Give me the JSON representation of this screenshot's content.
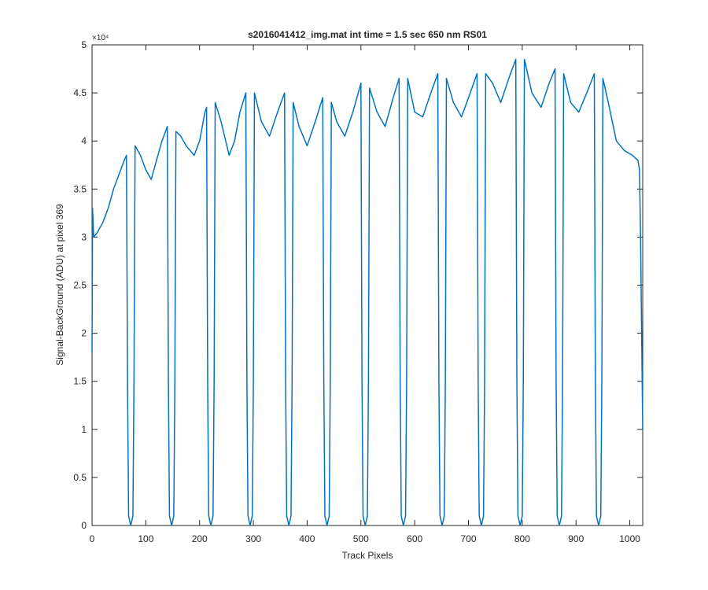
{
  "chart_data": {
    "type": "line",
    "title": "s2016041412_img.mat int time = 1.5 sec  650 nm RS01",
    "x_label": "Track Pixels",
    "y_label": "Signal-BackGround (ADU) at pixel 369",
    "exponent_label": "×10⁴",
    "xlim": [
      0,
      1024
    ],
    "xticks": [
      0,
      100,
      200,
      300,
      400,
      500,
      600,
      700,
      800,
      900,
      1000
    ],
    "ylim": [
      0,
      50000
    ],
    "yticks": [
      0,
      {
        "value": 5000,
        "label": "0.5"
      },
      {
        "value": 10000,
        "label": "1"
      },
      {
        "value": 15000,
        "label": "1.5"
      },
      {
        "value": 20000,
        "label": "2"
      },
      {
        "value": 25000,
        "label": "2.5"
      },
      {
        "value": 30000,
        "label": "3"
      },
      {
        "value": 35000,
        "label": "3.5"
      },
      {
        "value": 40000,
        "label": "4"
      },
      {
        "value": 45000,
        "label": "4.5"
      },
      {
        "value": 50000,
        "label": "5"
      }
    ],
    "grid": false,
    "series": [
      {
        "color": "#0072BD",
        "x": [
          0,
          1,
          3,
          10,
          20,
          30,
          40,
          50,
          60,
          64,
          66,
          68,
          72,
          76,
          78,
          80,
          90,
          100,
          110,
          120,
          130,
          140,
          142,
          144,
          148,
          152,
          154,
          156,
          165,
          175,
          190,
          200,
          210,
          213,
          215,
          217,
          221,
          225,
          227,
          229,
          240,
          255,
          265,
          275,
          286,
          288,
          290,
          294,
          298,
          300,
          302,
          315,
          330,
          345,
          358,
          360,
          362,
          366,
          370,
          372,
          374,
          385,
          400,
          415,
          429,
          431,
          433,
          437,
          441,
          443,
          445,
          455,
          470,
          485,
          500,
          502,
          504,
          508,
          512,
          514,
          516,
          530,
          545,
          560,
          571,
          573,
          575,
          579,
          583,
          585,
          587,
          600,
          615,
          630,
          643,
          645,
          647,
          651,
          655,
          657,
          659,
          672,
          687,
          700,
          716,
          718,
          720,
          724,
          728,
          730,
          732,
          745,
          760,
          775,
          788,
          790,
          792,
          796,
          800,
          802,
          804,
          818,
          835,
          850,
          861,
          863,
          865,
          869,
          873,
          875,
          877,
          890,
          905,
          920,
          934,
          936,
          938,
          942,
          946,
          948,
          950,
          960,
          975,
          990,
          1005,
          1015,
          1018,
          1020,
          1024
        ],
        "values": [
          18000,
          33000,
          30000,
          30500,
          31500,
          33000,
          35000,
          36500,
          38000,
          38500,
          15000,
          1000,
          0,
          1000,
          15000,
          39500,
          38500,
          37000,
          36000,
          38000,
          40000,
          41500,
          15000,
          1000,
          0,
          1000,
          15000,
          41000,
          40500,
          39500,
          38500,
          40000,
          43000,
          43500,
          15000,
          1000,
          0,
          1000,
          15000,
          44000,
          42000,
          38500,
          40000,
          43000,
          45000,
          15000,
          1000,
          0,
          1000,
          15000,
          45000,
          42000,
          40500,
          43000,
          45000,
          15000,
          1000,
          0,
          1000,
          15000,
          44000,
          41500,
          39500,
          42000,
          44500,
          15000,
          1000,
          0,
          1000,
          15000,
          44000,
          42000,
          40500,
          43000,
          46000,
          15000,
          1000,
          0,
          1000,
          15000,
          45500,
          43000,
          41500,
          44500,
          46500,
          15000,
          1000,
          0,
          1000,
          15000,
          46500,
          43000,
          42500,
          45000,
          47000,
          15000,
          1000,
          0,
          1000,
          15000,
          46500,
          44000,
          42500,
          44500,
          47000,
          15000,
          1000,
          0,
          1000,
          15000,
          47000,
          46000,
          44000,
          46500,
          48500,
          15000,
          1000,
          0,
          1000,
          15000,
          48500,
          45000,
          43500,
          46000,
          47500,
          15000,
          1000,
          0,
          1000,
          15000,
          47000,
          44000,
          43000,
          45000,
          47000,
          15000,
          1000,
          0,
          1000,
          15000,
          46500,
          44000,
          40000,
          39000,
          38500,
          38000,
          37000,
          30000,
          10000
        ]
      }
    ]
  }
}
